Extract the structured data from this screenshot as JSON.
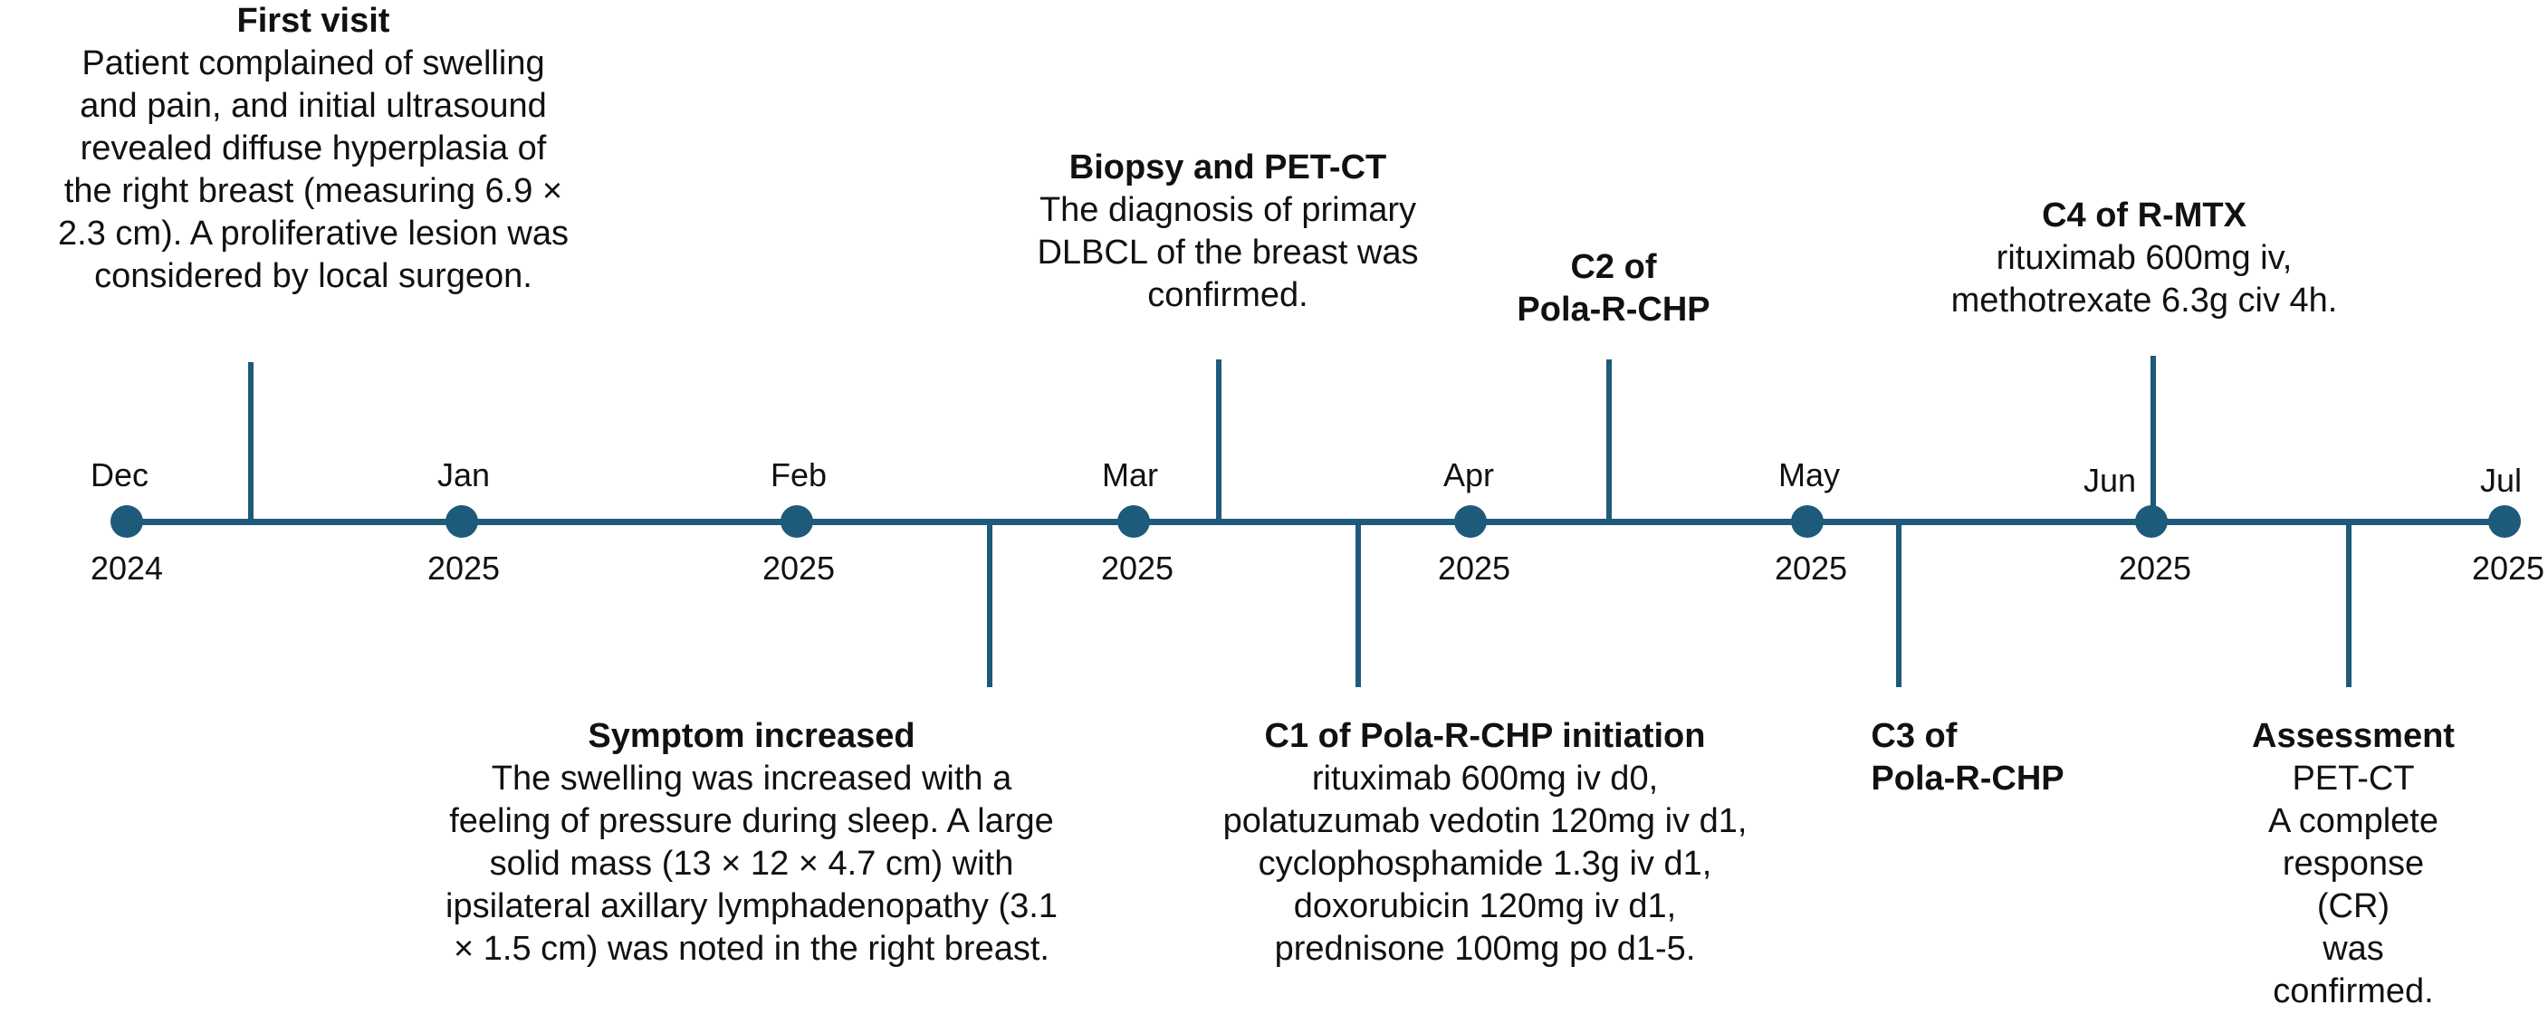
{
  "timeline": {
    "months": [
      {
        "month": "Dec",
        "year": "2024"
      },
      {
        "month": "Jan",
        "year": "2025"
      },
      {
        "month": "Feb",
        "year": "2025"
      },
      {
        "month": "Mar",
        "year": "2025"
      },
      {
        "month": "Apr",
        "year": "2025"
      },
      {
        "month": "May",
        "year": "2025"
      },
      {
        "month": "Jun",
        "year": "2025"
      },
      {
        "month": "Jul",
        "year": "2025"
      }
    ],
    "events": {
      "first_visit": {
        "title": "First visit",
        "body": "Patient complained of swelling\nand pain, and initial ultrasound\nrevealed diffuse hyperplasia of\nthe right breast (measuring 6.9 ×\n2.3 cm). A proliferative lesion was\nconsidered by local surgeon."
      },
      "symptom_increased": {
        "title": "Symptom increased",
        "body": "The swelling was increased with a\nfeeling of pressure during sleep. A large\nsolid mass (13 × 12 × 4.7 cm) with\nipsilateral axillary lymphadenopathy (3.1\n× 1.5 cm) was noted in the right breast."
      },
      "biopsy": {
        "title": "Biopsy and PET-CT",
        "body": "The diagnosis of primary\nDLBCL of the breast was\nconfirmed."
      },
      "c1": {
        "title": "C1 of Pola-R-CHP initiation",
        "body": "rituximab 600mg iv d0,\npolatuzumab vedotin 120mg iv d1,\ncyclophosphamide 1.3g iv d1,\ndoxorubicin 120mg iv d1,\nprednisone 100mg po d1-5."
      },
      "c2": {
        "title": "C2 of\nPola-R-CHP"
      },
      "c3": {
        "title": "C3 of\nPola-R-CHP"
      },
      "c4": {
        "title": "C4 of R-MTX",
        "body": "rituximab 600mg iv,\nmethotrexate 6.3g civ 4h."
      },
      "assessment": {
        "title": "Assessment",
        "body": "PET-CT\nA complete\nresponse (CR)\nwas confirmed."
      }
    }
  },
  "colors": {
    "axis": "#1e5a7a"
  }
}
